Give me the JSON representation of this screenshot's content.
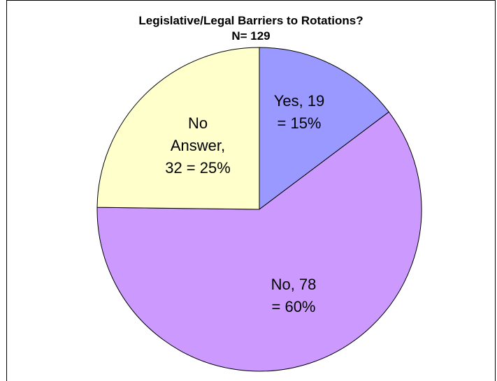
{
  "chart_data": {
    "type": "pie",
    "title": "Legislative/Legal Barriers to Rotations?",
    "subtitle": "N= 129",
    "slices": [
      {
        "category": "Yes",
        "value": 19,
        "percent": 15,
        "label_lines": [
          "Yes, 19",
          "= 15%"
        ],
        "color": "#9999ff"
      },
      {
        "category": "No",
        "value": 78,
        "percent": 60,
        "label_lines": [
          "No, 78",
          "= 60%"
        ],
        "color": "#cc99ff"
      },
      {
        "category": "No Answer",
        "value": 32,
        "percent": 25,
        "label_lines": [
          "No",
          "Answer,",
          "32 = 25%"
        ],
        "color": "#ffffcc"
      }
    ]
  }
}
